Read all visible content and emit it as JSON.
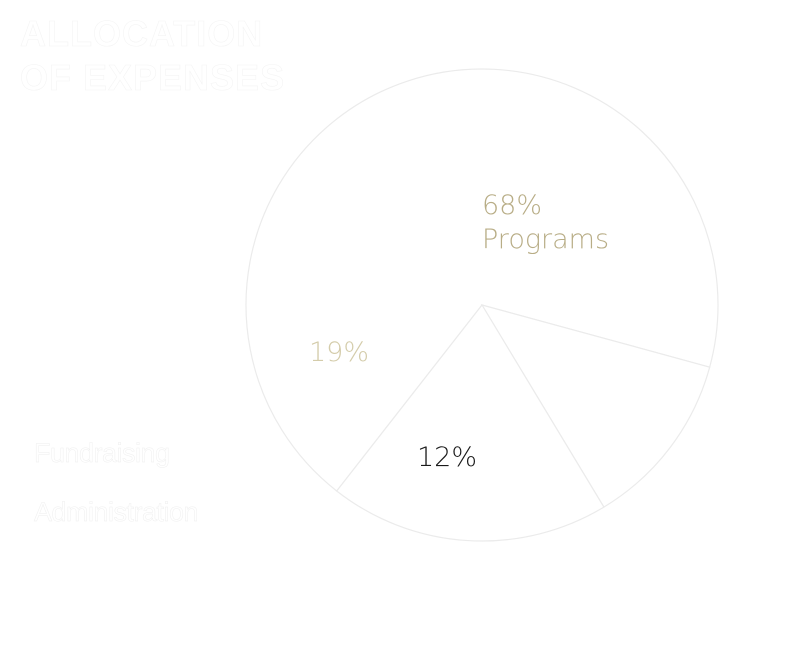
{
  "chart_data": {
    "type": "pie",
    "title_lines": [
      "ALLOCATION",
      "OF EXPENSES"
    ],
    "slices": [
      {
        "label": "Programs",
        "value": 68,
        "display": "68%",
        "color": "#ffffff",
        "label_color": "#b8ad86"
      },
      {
        "label": "Fundraising",
        "value": 12,
        "display": "12%",
        "color": "#ffffff",
        "label_color": "#1a1a1a"
      },
      {
        "label": "Administration",
        "value": 19,
        "display": "19%",
        "color": "#ffffff",
        "label_color": "#d4ccaa"
      }
    ]
  },
  "colors": {
    "background": "#ffffff",
    "outline": "#ebebeb",
    "accent": "#b8ad86"
  }
}
